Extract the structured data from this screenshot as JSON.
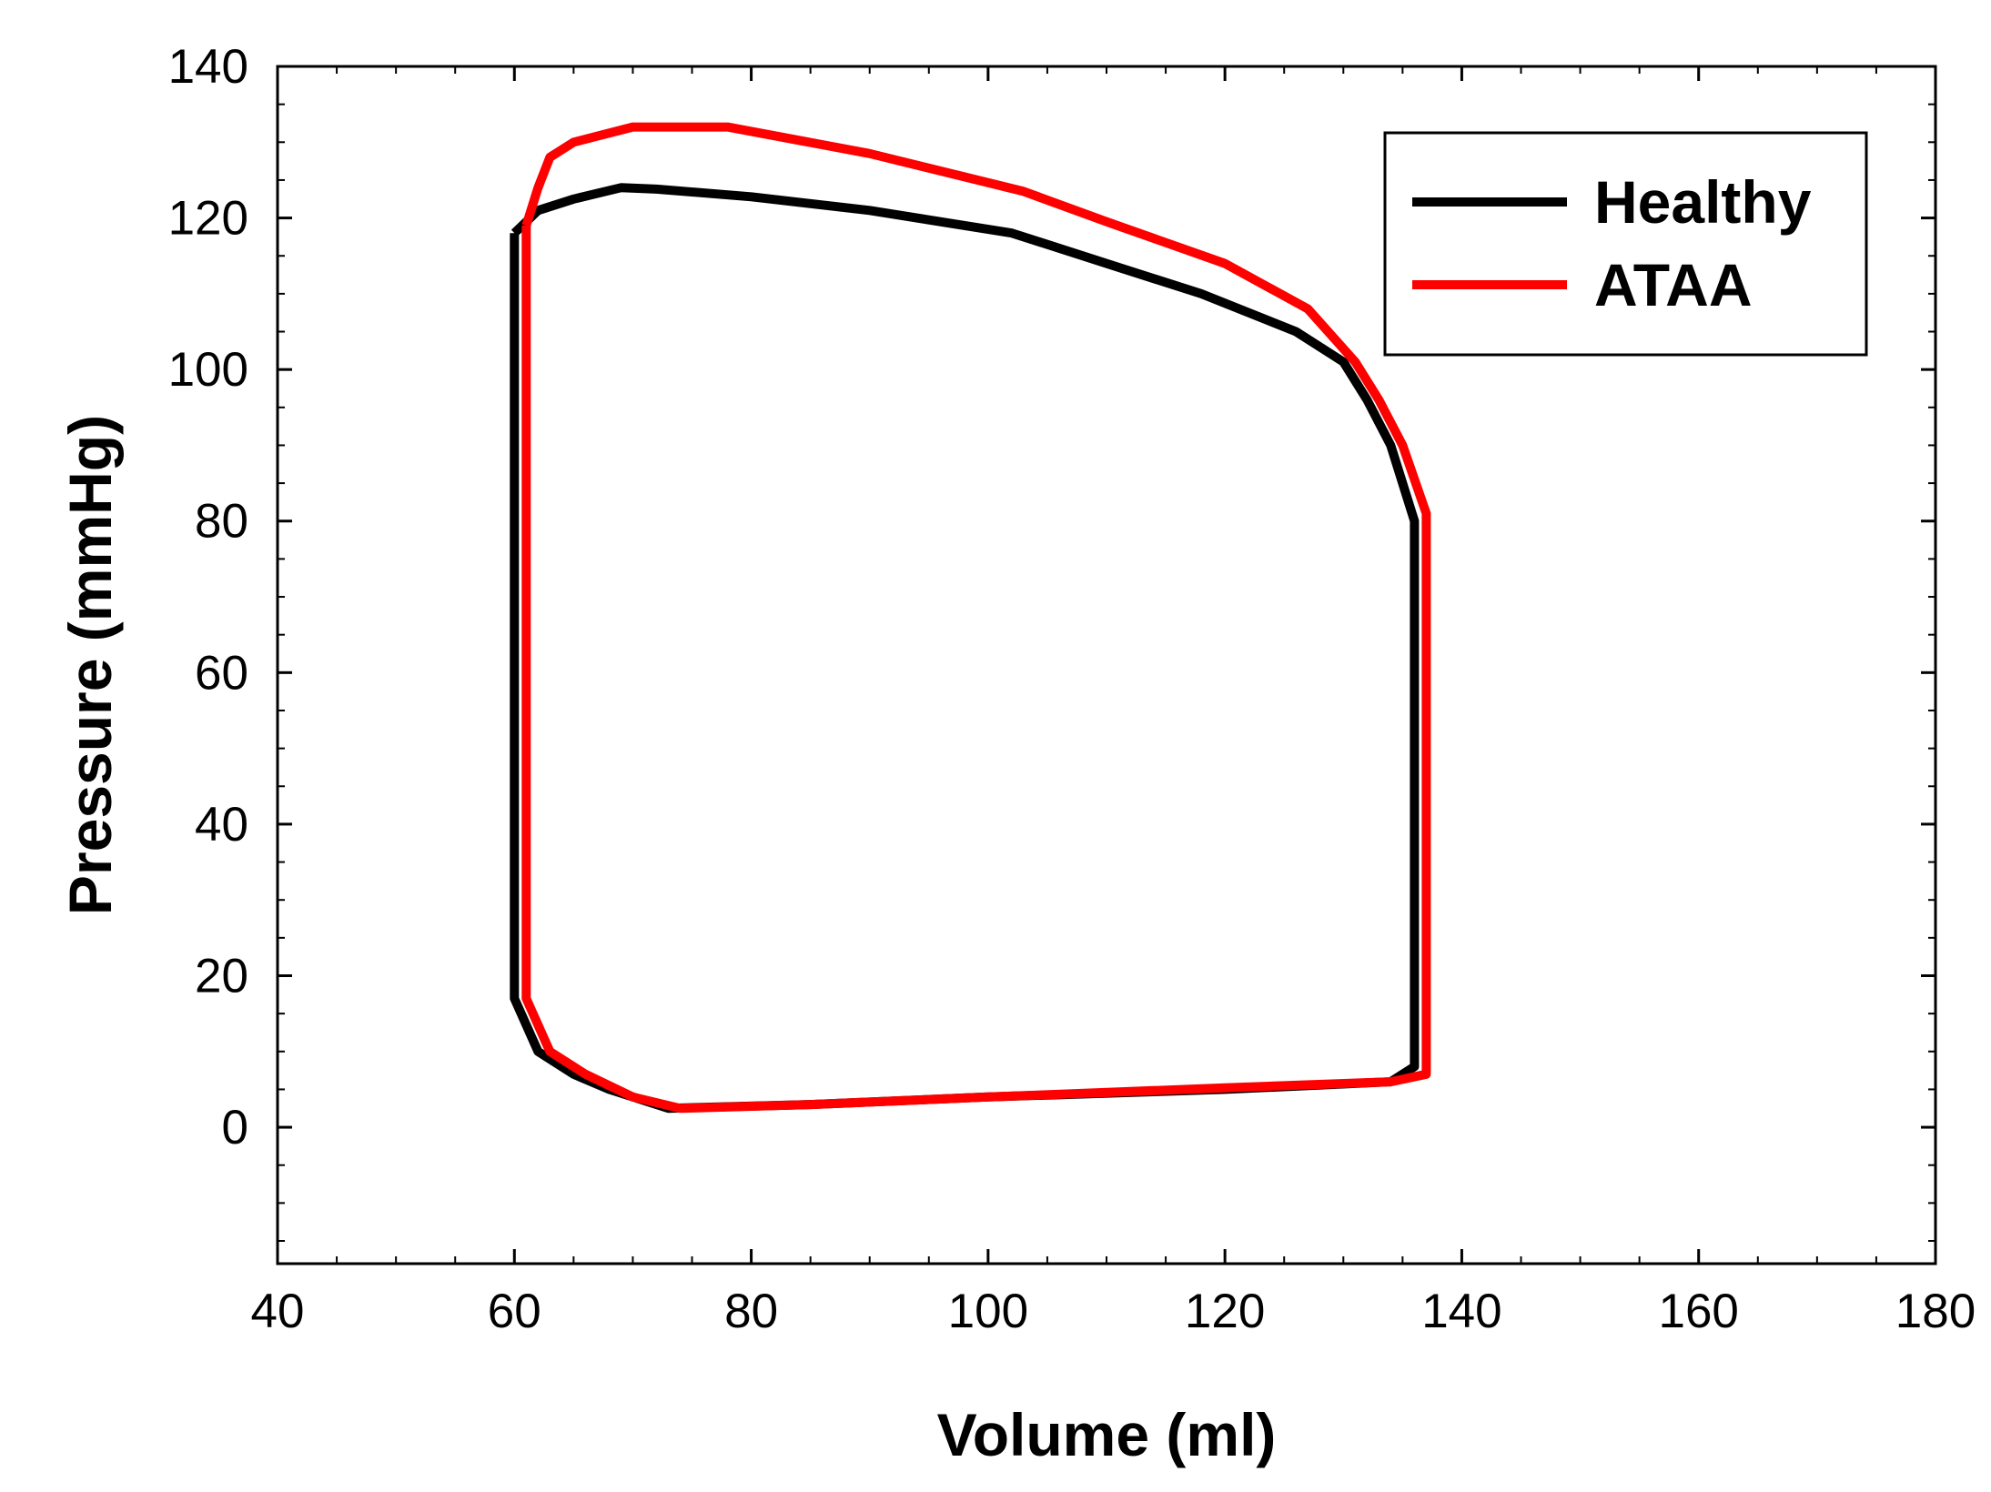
{
  "chart_data": {
    "type": "line",
    "title": "",
    "xlabel": "Volume (ml)",
    "ylabel": "Pressure (mmHg)",
    "xlim": [
      40,
      180
    ],
    "ylim": [
      -18,
      140
    ],
    "xticks": [
      40,
      60,
      80,
      100,
      120,
      140,
      160,
      180
    ],
    "yticks": [
      0,
      20,
      40,
      60,
      80,
      100,
      120,
      140
    ],
    "grid": false,
    "legend_position": "top-right",
    "series": [
      {
        "name": "Healthy",
        "color": "#000000",
        "points": [
          [
            60,
            118
          ],
          [
            62,
            121
          ],
          [
            65,
            122.5
          ],
          [
            69,
            124
          ],
          [
            72,
            123.8
          ],
          [
            80,
            122.8
          ],
          [
            90,
            121
          ],
          [
            102,
            118
          ],
          [
            110,
            114
          ],
          [
            118,
            110
          ],
          [
            126,
            105
          ],
          [
            130,
            101
          ],
          [
            132,
            96
          ],
          [
            134,
            90
          ],
          [
            136,
            80
          ],
          [
            136,
            40
          ],
          [
            136,
            8
          ],
          [
            134,
            6
          ],
          [
            120,
            5
          ],
          [
            100,
            4
          ],
          [
            85,
            3
          ],
          [
            73,
            2.5
          ],
          [
            68,
            5
          ],
          [
            65,
            7
          ],
          [
            62,
            10
          ],
          [
            60,
            17
          ],
          [
            60,
            118
          ]
        ]
      },
      {
        "name": "ATAA",
        "color": "#ff0000",
        "points": [
          [
            61,
            119
          ],
          [
            62,
            124
          ],
          [
            63,
            128
          ],
          [
            65,
            130
          ],
          [
            70,
            132
          ],
          [
            78,
            132
          ],
          [
            90,
            128.5
          ],
          [
            103,
            123.5
          ],
          [
            110,
            119.5
          ],
          [
            120,
            114
          ],
          [
            127,
            108
          ],
          [
            131,
            101
          ],
          [
            133,
            96
          ],
          [
            135,
            90
          ],
          [
            137,
            81
          ],
          [
            137,
            40
          ],
          [
            137,
            7
          ],
          [
            134,
            6
          ],
          [
            120,
            5.2
          ],
          [
            100,
            4
          ],
          [
            85,
            3
          ],
          [
            74,
            2.5
          ],
          [
            70,
            4
          ],
          [
            66,
            7
          ],
          [
            63,
            10
          ],
          [
            61,
            17
          ],
          [
            61,
            119
          ]
        ]
      }
    ]
  }
}
